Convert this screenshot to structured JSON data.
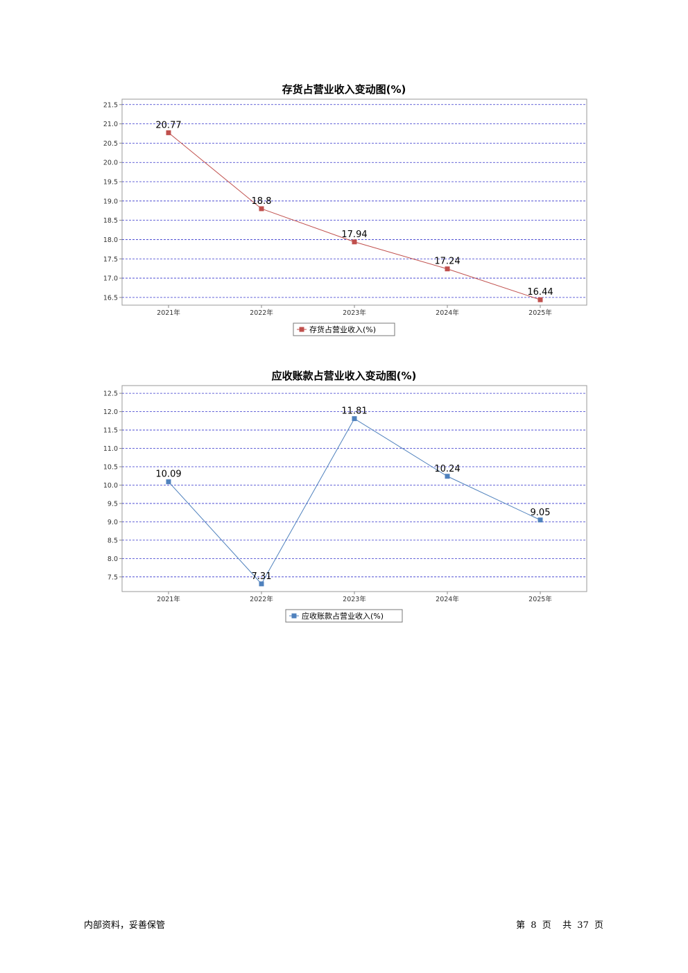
{
  "chart_data": [
    {
      "type": "line",
      "title": "存货占营业收入变动图(%)",
      "categories": [
        "2021年",
        "2022年",
        "2023年",
        "2024年",
        "2025年"
      ],
      "series": [
        {
          "name": "存货占营业收入(%)",
          "values": [
            20.77,
            18.8,
            17.94,
            17.24,
            16.44
          ],
          "color": "#c0504d"
        }
      ],
      "yticks": [
        "21.5",
        "21.0",
        "20.5",
        "20.0",
        "19.5",
        "19.0",
        "18.5",
        "18.0",
        "17.5",
        "17.0",
        "16.5"
      ],
      "ylim": [
        16.3,
        21.64
      ],
      "grid": true,
      "grid_color": "#3333cc",
      "legend_position": "bottom"
    },
    {
      "type": "line",
      "title": "应收账款占营业收入变动图(%)",
      "categories": [
        "2021年",
        "2022年",
        "2023年",
        "2024年",
        "2025年"
      ],
      "series": [
        {
          "name": "应收账款占营业收入(%)",
          "values": [
            10.09,
            7.31,
            11.81,
            10.24,
            9.05
          ],
          "color": "#4f81bd"
        }
      ],
      "yticks": [
        "12.5",
        "12.0",
        "11.5",
        "11.0",
        "10.5",
        "10.0",
        "9.5",
        "9.0",
        "8.5",
        "8.0",
        "7.5"
      ],
      "ylim": [
        7.1,
        12.71
      ],
      "grid": true,
      "grid_color": "#3333cc",
      "legend_position": "bottom"
    }
  ],
  "footer": {
    "left": "内部资料，妥善保管",
    "page_prefix": "第",
    "page_current": "8",
    "page_unit": "页",
    "total_prefix": "共",
    "page_total": "37",
    "total_unit": "页"
  }
}
